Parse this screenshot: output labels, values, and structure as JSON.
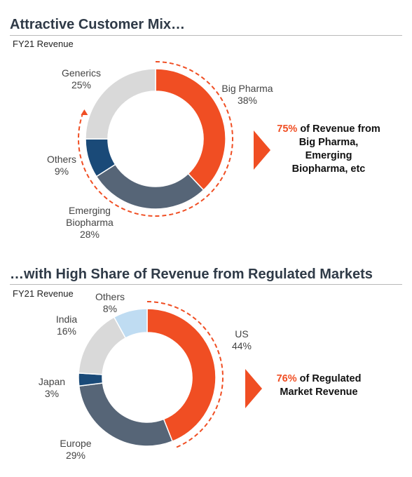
{
  "colors": {
    "accent": "#f04e23",
    "slate": "#566577",
    "navy": "#1a4a78",
    "light_gray": "#d9d9d9",
    "light_blue": "#bfdcf2"
  },
  "chart_data": [
    {
      "type": "pie",
      "title": "Attractive Customer Mix…",
      "subtitle": "FY21 Revenue",
      "donut": true,
      "categories": [
        "Big Pharma",
        "Emerging Biopharma",
        "Others",
        "Generics"
      ],
      "values": [
        38,
        28,
        9,
        25
      ],
      "value_labels": [
        "38%",
        "28%",
        "9%",
        "25%"
      ],
      "slice_colors": [
        "#f04e23",
        "#566577",
        "#1a4a78",
        "#d9d9d9"
      ],
      "callout": {
        "pct": "75%",
        "text": " of Revenue from Big Pharma, Emerging Biopharma, etc"
      }
    },
    {
      "type": "pie",
      "title": "…with High Share of Revenue from Regulated Markets",
      "subtitle": "FY21 Revenue",
      "donut": true,
      "categories": [
        "US",
        "Europe",
        "Japan",
        "India",
        "Others"
      ],
      "values": [
        44,
        29,
        3,
        16,
        8
      ],
      "value_labels": [
        "44%",
        "29%",
        "3%",
        "16%",
        "8%"
      ],
      "slice_colors": [
        "#f04e23",
        "#566577",
        "#1a4a78",
        "#d9d9d9",
        "#bfdcf2"
      ],
      "callout": {
        "pct": "76%",
        "text": " of Regulated Market Revenue"
      }
    }
  ]
}
